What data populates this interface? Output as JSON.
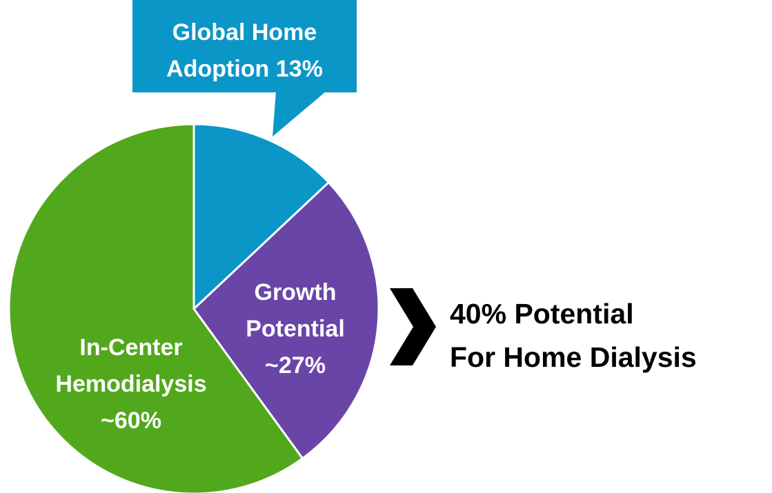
{
  "chart_data": {
    "type": "pie",
    "categories": [
      "Global Home Adoption",
      "Growth Potential",
      "In-Center Hemodialysis"
    ],
    "values": [
      13,
      27,
      60
    ],
    "value_labels": [
      "13%",
      "~27%",
      "~60%"
    ],
    "colors": [
      "#0b96c8",
      "#6a45a8",
      "#52a81c"
    ],
    "annotation": [
      "40% Potential",
      "For Home Dialysis"
    ]
  }
}
